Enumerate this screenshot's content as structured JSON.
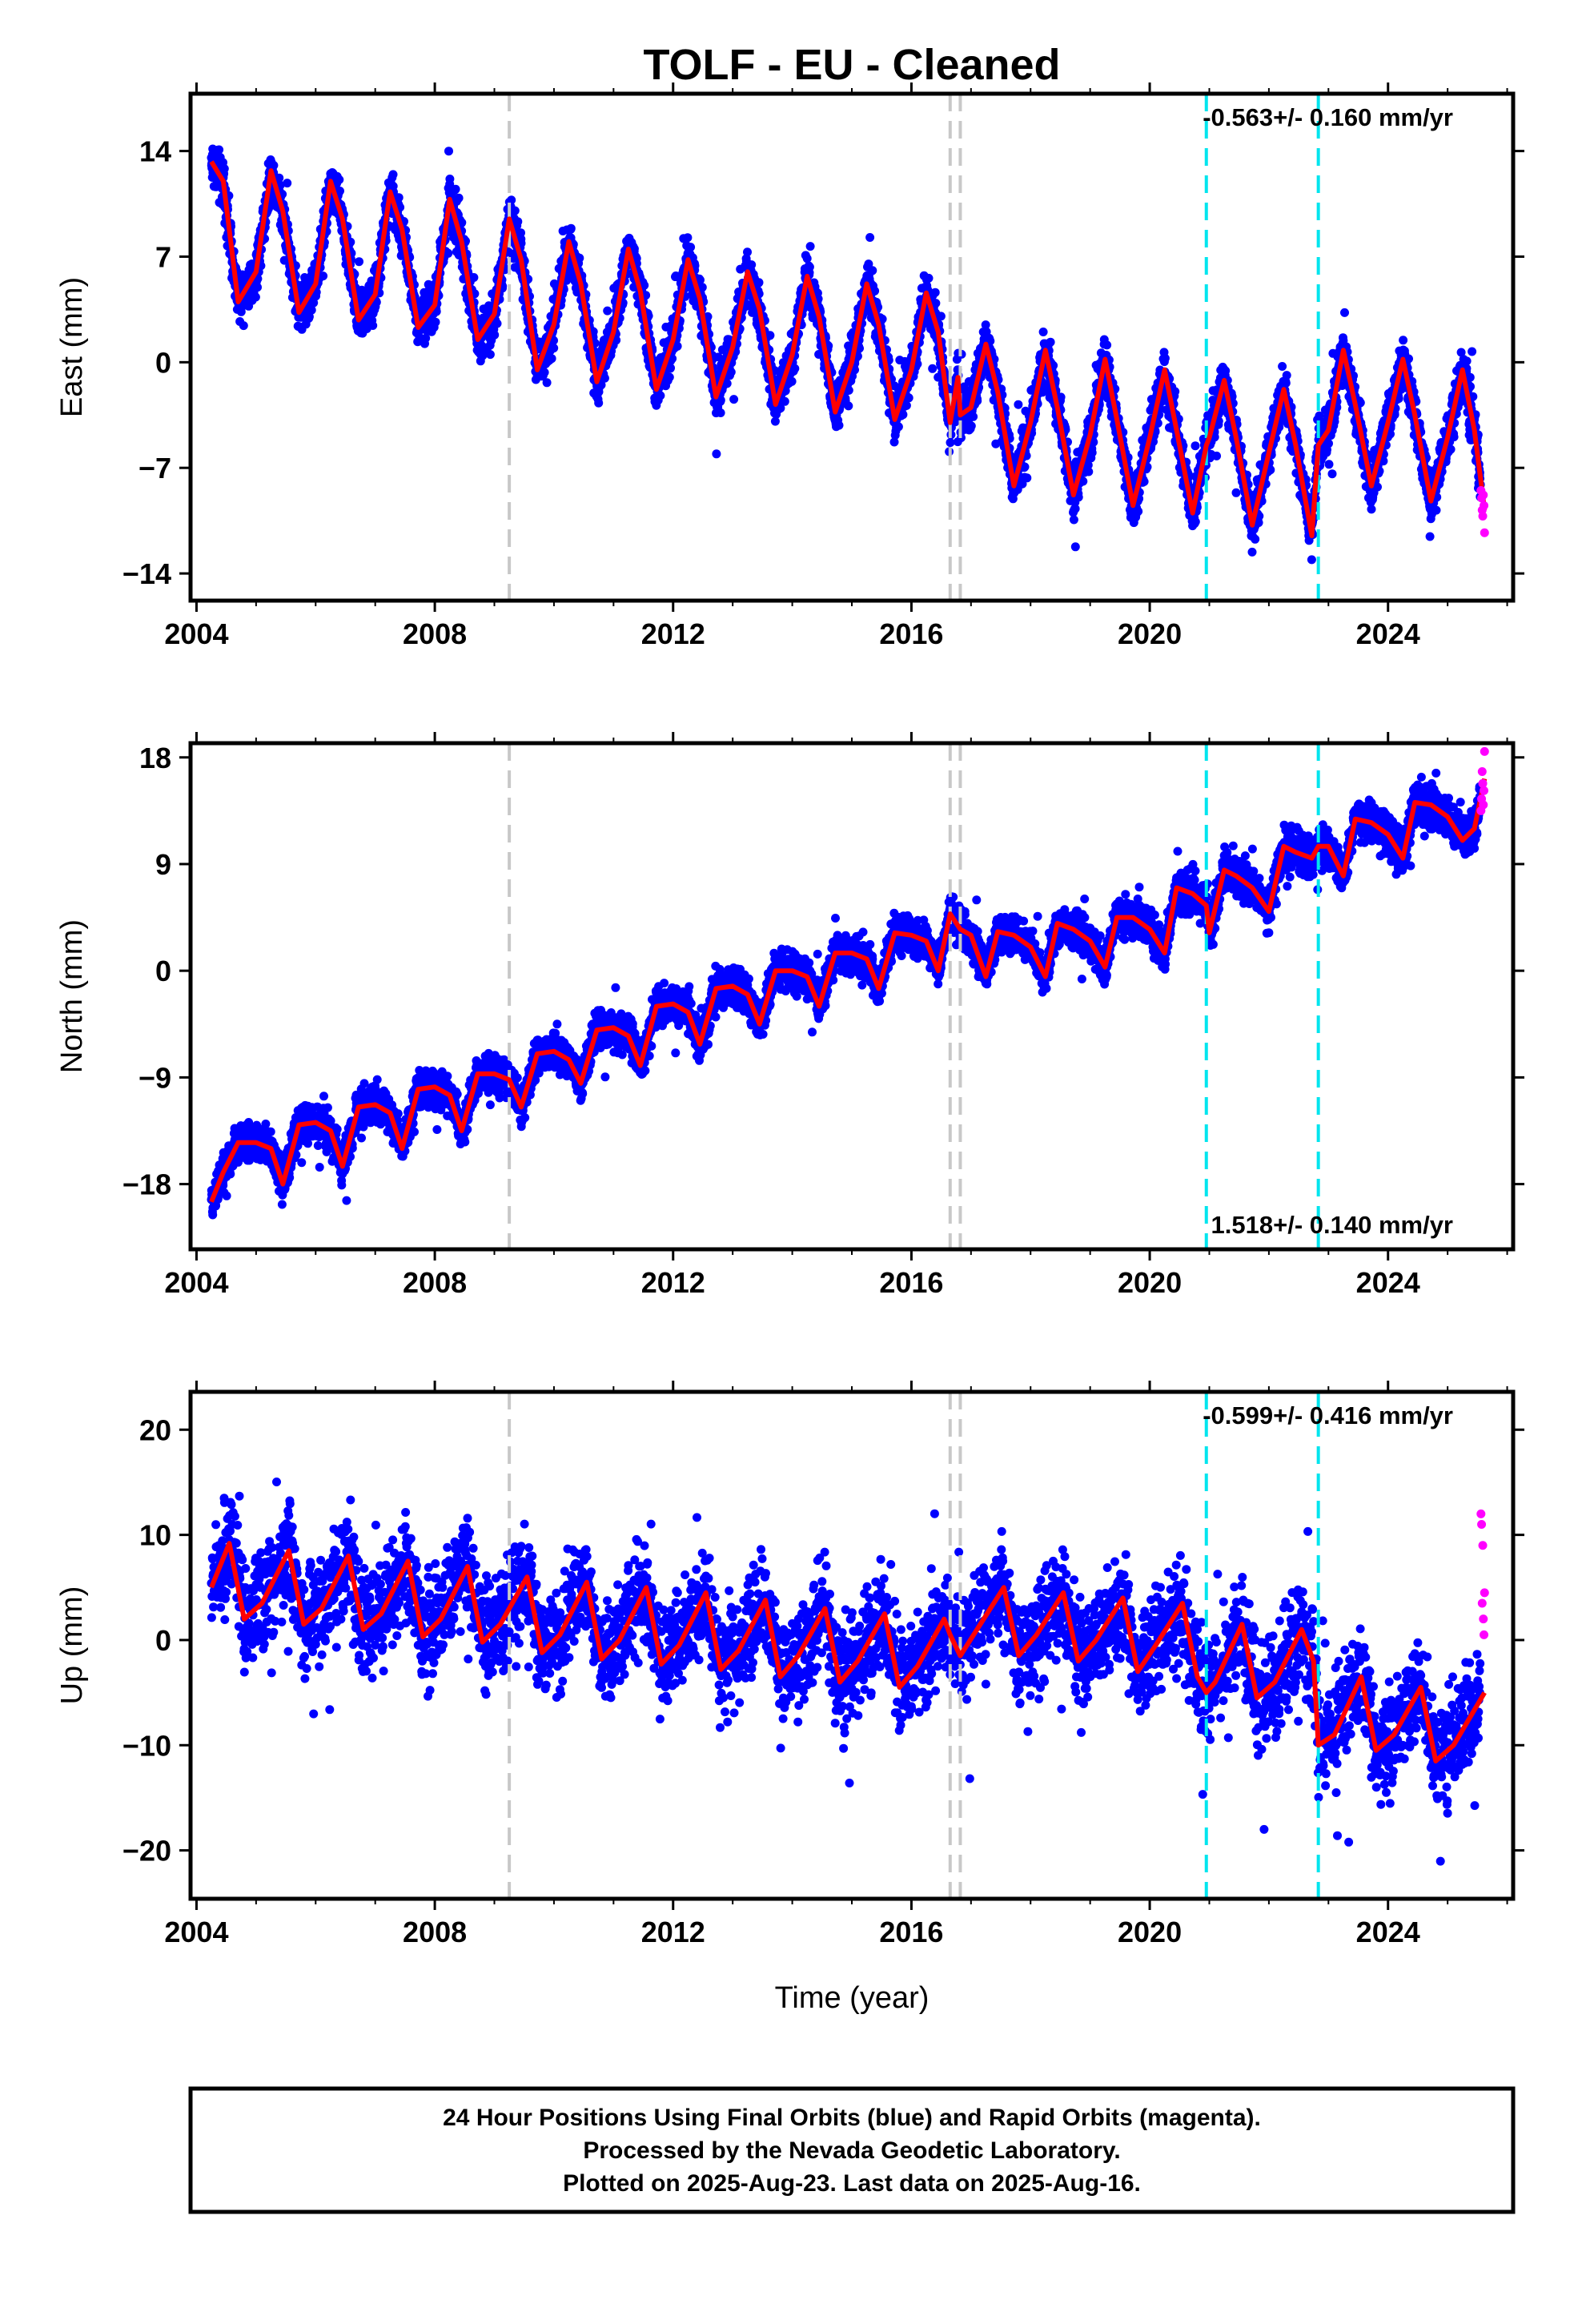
{
  "figure": {
    "title": "TOLF  - EU - Cleaned",
    "xlabel": "Time (year)"
  },
  "footer": {
    "lines": [
      "24 Hour Positions Using Final Orbits (blue) and Rapid Orbits (magenta).",
      "Processed by the Nevada Geodetic Laboratory.",
      "Plotted on 2025-Aug-23. Last data on 2025-Aug-16."
    ]
  },
  "colors": {
    "final_orbits": "#0000ff",
    "rapid_orbits": "#ff00ff",
    "model_fit": "#ff0000",
    "equipment_change": "#c8c8c8",
    "earthquake": "#00e5ee"
  },
  "chart_data": [
    {
      "type": "scatter",
      "panel": "east",
      "ylabel": "East (mm)",
      "rate_text": "-0.563+/- 0.160 mm/yr",
      "rate_position": "top-right",
      "xlim": [
        2003.9,
        2026.1
      ],
      "ylim": [
        -15.8,
        17.8
      ],
      "x_ticks": [
        2004,
        2008,
        2012,
        2016,
        2020,
        2024
      ],
      "x_tick_labels": [
        "2004",
        "2008",
        "2012",
        "2016",
        "2020",
        "2024"
      ],
      "y_ticks": [
        14,
        7,
        0,
        -7,
        -14
      ],
      "y_tick_labels": [
        "14",
        "7",
        "0",
        "−7",
        "−14"
      ],
      "equipment_changes": [
        2009.25,
        2016.65,
        2016.82
      ],
      "earthquakes": [
        2020.95,
        2022.83
      ],
      "model_fit": {
        "x": [
          2004.25,
          2004.45,
          2004.7,
          2005.0,
          2005.25,
          2005.45,
          2005.72,
          2006.0,
          2006.25,
          2006.45,
          2006.72,
          2007.0,
          2007.25,
          2007.45,
          2007.72,
          2008.0,
          2008.25,
          2008.45,
          2008.72,
          2009.0,
          2009.25,
          2009.45,
          2009.72,
          2010.0,
          2010.25,
          2010.45,
          2010.72,
          2011.0,
          2011.25,
          2011.45,
          2011.72,
          2012.0,
          2012.25,
          2012.45,
          2012.72,
          2013.0,
          2013.25,
          2013.45,
          2013.72,
          2014.0,
          2014.25,
          2014.45,
          2014.72,
          2015.0,
          2015.25,
          2015.45,
          2015.72,
          2016.0,
          2016.25,
          2016.45,
          2016.6,
          2016.65,
          2016.78,
          2016.82,
          2017.0,
          2017.25,
          2017.45,
          2017.72,
          2018.0,
          2018.25,
          2018.45,
          2018.72,
          2019.0,
          2019.25,
          2019.45,
          2019.72,
          2020.0,
          2020.25,
          2020.45,
          2020.72,
          2020.95,
          2021.0,
          2021.25,
          2021.45,
          2021.72,
          2022.0,
          2022.25,
          2022.45,
          2022.72,
          2022.83,
          2023.0,
          2023.25,
          2023.45,
          2023.72,
          2024.0,
          2024.25,
          2024.45,
          2024.72,
          2025.0,
          2025.25,
          2025.45,
          2025.62
        ],
        "y": [
          13.3,
          12.0,
          4.0,
          6.0,
          12.7,
          10.0,
          3.3,
          5.2,
          12.0,
          9.5,
          2.8,
          4.5,
          11.3,
          8.8,
          2.3,
          3.8,
          10.8,
          8.0,
          1.5,
          3.2,
          9.5,
          6.8,
          -0.5,
          2.5,
          8.0,
          5.2,
          -1.3,
          2.0,
          7.5,
          4.7,
          -1.8,
          1.5,
          6.8,
          4.2,
          -2.3,
          1.0,
          6.0,
          3.5,
          -2.8,
          0.5,
          5.7,
          3.0,
          -3.3,
          0.0,
          5.2,
          2.5,
          -3.8,
          -0.5,
          4.6,
          2.0,
          -2.5,
          -4.0,
          -1.0,
          -3.5,
          -3.0,
          1.2,
          -2.0,
          -8.2,
          -4.0,
          0.8,
          -3.0,
          -8.8,
          -4.8,
          0.2,
          -3.8,
          -9.5,
          -5.0,
          -0.5,
          -4.5,
          -10.0,
          -5.5,
          -5.0,
          -1.2,
          -5.0,
          -10.8,
          -6.0,
          -1.8,
          -5.5,
          -11.5,
          -5.5,
          -4.5,
          0.8,
          -2.8,
          -8.2,
          -4.0,
          0.2,
          -3.5,
          -9.2,
          -5.0,
          -0.5,
          -4.5,
          -9.8
        ]
      },
      "rapid_points": {
        "x": [
          2025.56,
          2025.57,
          2025.58,
          2025.59,
          2025.6,
          2025.61,
          2025.62
        ],
        "y": [
          -8.5,
          -9.0,
          -9.8,
          -10.2,
          -8.8,
          -9.5,
          -11.3
        ]
      }
    },
    {
      "type": "scatter",
      "panel": "north",
      "ylabel": "North (mm)",
      "rate_text": "1.518+/- 0.140 mm/yr",
      "rate_position": "bottom-right",
      "xlim": [
        2003.9,
        2026.1
      ],
      "ylim": [
        -23.5,
        19.2
      ],
      "x_ticks": [
        2004,
        2008,
        2012,
        2016,
        2020,
        2024
      ],
      "x_tick_labels": [
        "2004",
        "2008",
        "2012",
        "2016",
        "2020",
        "2024"
      ],
      "y_ticks": [
        18,
        9,
        0,
        -9,
        -18
      ],
      "y_tick_labels": [
        "18",
        "9",
        "0",
        "−9",
        "−18"
      ],
      "equipment_changes": [
        2009.25,
        2016.65,
        2016.82
      ],
      "earthquakes": [
        2020.95,
        2022.83
      ],
      "model_fit": {
        "x": [
          2004.25,
          2004.45,
          2004.7,
          2005.0,
          2005.25,
          2005.45,
          2005.72,
          2006.0,
          2006.25,
          2006.45,
          2006.72,
          2007.0,
          2007.25,
          2007.45,
          2007.72,
          2008.0,
          2008.25,
          2008.45,
          2008.72,
          2009.0,
          2009.25,
          2009.45,
          2009.72,
          2010.0,
          2010.25,
          2010.45,
          2010.72,
          2011.0,
          2011.25,
          2011.45,
          2011.72,
          2012.0,
          2012.25,
          2012.45,
          2012.72,
          2013.0,
          2013.25,
          2013.45,
          2013.72,
          2014.0,
          2014.25,
          2014.45,
          2014.72,
          2015.0,
          2015.25,
          2015.45,
          2015.72,
          2016.0,
          2016.25,
          2016.45,
          2016.65,
          2016.82,
          2017.0,
          2017.25,
          2017.45,
          2017.72,
          2018.0,
          2018.25,
          2018.45,
          2018.72,
          2019.0,
          2019.25,
          2019.45,
          2019.72,
          2020.0,
          2020.25,
          2020.45,
          2020.72,
          2020.95,
          2021.0,
          2021.25,
          2021.45,
          2021.72,
          2022.0,
          2022.25,
          2022.45,
          2022.72,
          2022.83,
          2023.0,
          2023.25,
          2023.45,
          2023.72,
          2024.0,
          2024.25,
          2024.45,
          2024.72,
          2025.0,
          2025.25,
          2025.45,
          2025.62
        ],
        "y": [
          -19.5,
          -17.0,
          -14.5,
          -14.5,
          -15.0,
          -18.0,
          -13.0,
          -12.8,
          -13.5,
          -16.5,
          -11.5,
          -11.3,
          -12.0,
          -15.0,
          -10.0,
          -9.8,
          -10.5,
          -13.5,
          -8.7,
          -8.7,
          -9.2,
          -11.5,
          -7.0,
          -6.8,
          -7.5,
          -9.5,
          -5.0,
          -4.8,
          -5.5,
          -8.0,
          -3.0,
          -2.8,
          -3.5,
          -6.2,
          -1.5,
          -1.3,
          -2.0,
          -4.5,
          0.0,
          0.0,
          -0.5,
          -3.0,
          1.5,
          1.5,
          1.0,
          -1.5,
          3.2,
          3.0,
          2.5,
          0.0,
          4.8,
          3.5,
          3.0,
          -0.5,
          3.3,
          3.0,
          2.0,
          -0.5,
          4.0,
          3.5,
          2.5,
          0.3,
          4.5,
          4.5,
          3.5,
          1.5,
          7.0,
          6.5,
          5.5,
          3.2,
          8.5,
          8.0,
          7.0,
          5.0,
          10.5,
          10.0,
          9.5,
          10.5,
          10.5,
          8.0,
          12.8,
          12.5,
          11.5,
          9.5,
          14.2,
          14.0,
          13.0,
          11.0,
          12.0,
          16.2
        ]
      },
      "rapid_points": {
        "x": [
          2025.56,
          2025.57,
          2025.58,
          2025.59,
          2025.6,
          2025.61,
          2025.62
        ],
        "y": [
          13.5,
          14.5,
          16.8,
          15.8,
          14.0,
          15.2,
          18.5
        ]
      }
    },
    {
      "type": "scatter",
      "panel": "up",
      "ylabel": "Up (mm)",
      "rate_text": "-0.599+/- 0.416 mm/yr",
      "rate_position": "top-right",
      "xlim": [
        2003.9,
        2026.1
      ],
      "ylim": [
        -24.6,
        23.6
      ],
      "x_ticks": [
        2004,
        2008,
        2012,
        2016,
        2020,
        2024
      ],
      "x_tick_labels": [
        "2004",
        "2008",
        "2012",
        "2016",
        "2020",
        "2024"
      ],
      "y_ticks": [
        20,
        10,
        0,
        -10,
        -20
      ],
      "y_tick_labels": [
        "20",
        "10",
        "0",
        "−10",
        "−20"
      ],
      "equipment_changes": [
        2009.25,
        2016.65,
        2016.82
      ],
      "earthquakes": [
        2020.95,
        2022.83
      ],
      "model_fit": {
        "x": [
          2004.25,
          2004.55,
          2004.8,
          2005.1,
          2005.55,
          2005.8,
          2006.1,
          2006.55,
          2006.8,
          2007.1,
          2007.55,
          2007.8,
          2008.1,
          2008.55,
          2008.8,
          2009.1,
          2009.55,
          2009.8,
          2010.1,
          2010.55,
          2010.8,
          2011.1,
          2011.55,
          2011.8,
          2012.1,
          2012.55,
          2012.8,
          2013.1,
          2013.55,
          2013.8,
          2014.1,
          2014.55,
          2014.8,
          2015.1,
          2015.55,
          2015.8,
          2016.1,
          2016.55,
          2016.65,
          2016.82,
          2017.1,
          2017.55,
          2017.8,
          2018.1,
          2018.55,
          2018.8,
          2019.1,
          2019.55,
          2019.8,
          2020.1,
          2020.55,
          2020.8,
          2020.95,
          2021.1,
          2021.55,
          2021.8,
          2022.1,
          2022.55,
          2022.75,
          2022.83,
          2023.1,
          2023.55,
          2023.8,
          2024.1,
          2024.55,
          2024.8,
          2025.1,
          2025.62
        ],
        "y": [
          5.0,
          9.2,
          2.0,
          3.5,
          8.5,
          1.5,
          3.0,
          8.0,
          1.0,
          2.5,
          7.5,
          0.3,
          2.0,
          7.0,
          -0.2,
          1.5,
          6.0,
          -1.2,
          0.5,
          5.5,
          -1.8,
          0.0,
          5.0,
          -2.3,
          -0.5,
          4.5,
          -2.8,
          -1.0,
          3.8,
          -3.5,
          -1.5,
          3.0,
          -4.0,
          -2.0,
          2.5,
          -4.5,
          -2.5,
          2.0,
          0.5,
          -1.5,
          1.0,
          5.0,
          -1.5,
          0.5,
          4.5,
          -2.0,
          0.0,
          4.0,
          -3.0,
          -0.5,
          3.5,
          -3.5,
          -5.0,
          -4.0,
          1.5,
          -5.5,
          -4.0,
          1.0,
          -2.0,
          -10.0,
          -9.0,
          -3.5,
          -10.5,
          -9.0,
          -4.5,
          -11.5,
          -10.0,
          -5.0
        ]
      },
      "rapid_points": {
        "x": [
          2025.56,
          2025.57,
          2025.58,
          2025.59,
          2025.6,
          2025.61,
          2025.62
        ],
        "y": [
          12.0,
          11.0,
          3.5,
          9.0,
          2.0,
          0.5,
          4.5
        ]
      }
    }
  ]
}
